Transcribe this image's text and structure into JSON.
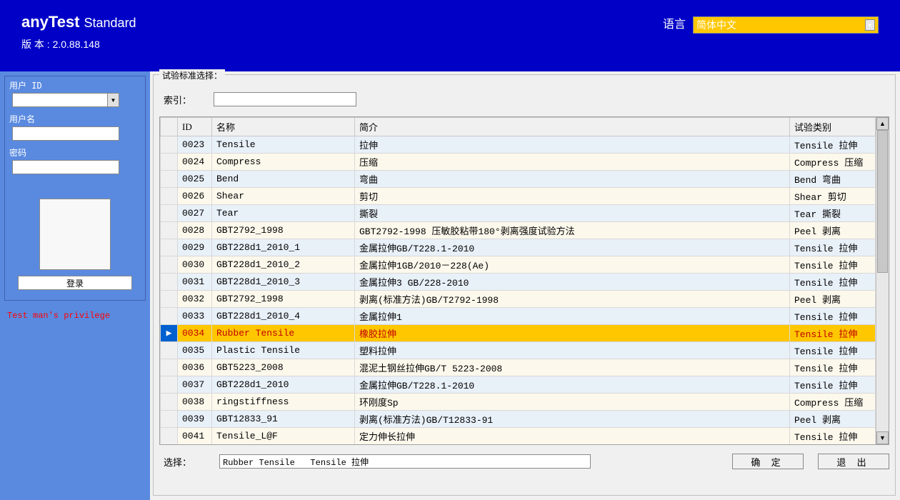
{
  "header": {
    "brand": "anyTest",
    "brand_sub": "Standard",
    "version_label": "版 本 :",
    "version": "2.0.88.148",
    "lang_label": "语言",
    "lang_value": "简体中文"
  },
  "sidebar": {
    "user_id_label": "用户 ID",
    "username_label": "用户名",
    "password_label": "密码",
    "login_btn": "登录",
    "privilege_text": "Test man's privilege"
  },
  "main": {
    "group_title": "试验标准选择：",
    "search_label": "索引：",
    "columns": {
      "id": "ID",
      "name": "名称",
      "desc": "简介",
      "cat": "试验类别"
    },
    "rows": [
      {
        "id": "0023",
        "name": "Tensile",
        "desc": "拉伸",
        "cat": "Tensile 拉伸",
        "sel": false
      },
      {
        "id": "0024",
        "name": "Compress",
        "desc": "压缩",
        "cat": "Compress 压缩",
        "sel": false
      },
      {
        "id": "0025",
        "name": "Bend",
        "desc": "弯曲",
        "cat": "Bend 弯曲",
        "sel": false
      },
      {
        "id": "0026",
        "name": "Shear",
        "desc": "剪切",
        "cat": "Shear 剪切",
        "sel": false
      },
      {
        "id": "0027",
        "name": "Tear",
        "desc": "撕裂",
        "cat": "Tear 撕裂",
        "sel": false
      },
      {
        "id": "0028",
        "name": "GBT2792_1998",
        "desc": "GBT2792-1998 压敏胶粘带180°剥离强度试验方法",
        "cat": "Peel 剥离",
        "sel": false
      },
      {
        "id": "0029",
        "name": "GBT228d1_2010_1",
        "desc": "金属拉伸GB/T228.1-2010",
        "cat": "Tensile 拉伸",
        "sel": false
      },
      {
        "id": "0030",
        "name": "GBT228d1_2010_2",
        "desc": "金属拉伸1GB/2010－228(Ae)",
        "cat": "Tensile 拉伸",
        "sel": false
      },
      {
        "id": "0031",
        "name": "GBT228d1_2010_3",
        "desc": "金属拉伸3 GB/228-2010",
        "cat": "Tensile 拉伸",
        "sel": false
      },
      {
        "id": "0032",
        "name": "GBT2792_1998",
        "desc": "剥离(标准方法)GB/T2792-1998",
        "cat": "Peel 剥离",
        "sel": false
      },
      {
        "id": "0033",
        "name": "GBT228d1_2010_4",
        "desc": "金属拉伸1",
        "cat": "Tensile 拉伸",
        "sel": false
      },
      {
        "id": "0034",
        "name": "Rubber Tensile",
        "desc": "橡胶拉伸",
        "cat": "Tensile 拉伸",
        "sel": true
      },
      {
        "id": "0035",
        "name": "Plastic Tensile",
        "desc": "塑料拉伸",
        "cat": "Tensile 拉伸",
        "sel": false
      },
      {
        "id": "0036",
        "name": "GBT5223_2008",
        "desc": "混泥土钢丝拉伸GB/T 5223-2008",
        "cat": "Tensile 拉伸",
        "sel": false
      },
      {
        "id": "0037",
        "name": "GBT228d1_2010",
        "desc": "金属拉伸GB/T228.1-2010",
        "cat": "Tensile 拉伸",
        "sel": false
      },
      {
        "id": "0038",
        "name": "ringstiffness",
        "desc": "环刚度Sp",
        "cat": "Compress 压缩",
        "sel": false
      },
      {
        "id": "0039",
        "name": "GBT12833_91",
        "desc": "剥离(标准方法)GB/T12833-91",
        "cat": "Peel 剥离",
        "sel": false
      },
      {
        "id": "0041",
        "name": "Tensile_L@F",
        "desc": "定力伸长拉伸",
        "cat": "Tensile 拉伸",
        "sel": false
      }
    ],
    "selection_label": "选择：",
    "selection_value": "Rubber Tensile   Tensile 拉伸",
    "ok_btn": "确 定",
    "exit_btn": "退 出"
  }
}
